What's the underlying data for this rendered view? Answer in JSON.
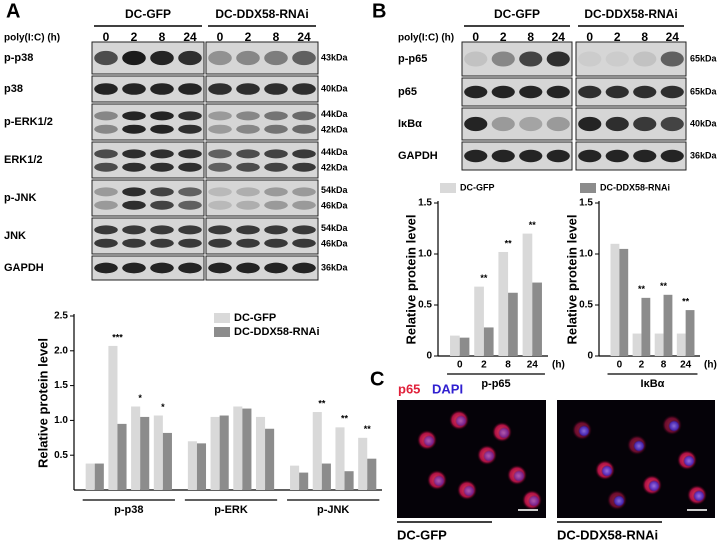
{
  "panel_labels": [
    "A",
    "B",
    "C"
  ],
  "blot_a": {
    "treatment_label": "poly(I:C) (h)",
    "groups": [
      "DC-GFP",
      "DC-DDX58-RNAi"
    ],
    "timepoints": [
      "0",
      "2",
      "8",
      "24"
    ],
    "rows": [
      {
        "name": "p-p38",
        "sizes": [
          "43kDa"
        ]
      },
      {
        "name": "p38",
        "sizes": [
          "40kDa"
        ]
      },
      {
        "name": "p-ERK1/2",
        "sizes": [
          "44kDa",
          "42kDa"
        ]
      },
      {
        "name": "ERK1/2",
        "sizes": [
          "44kDa",
          "42kDa"
        ]
      },
      {
        "name": "p-JNK",
        "sizes": [
          "54kDa",
          "46kDa"
        ]
      },
      {
        "name": "JNK",
        "sizes": [
          "54kDa",
          "46kDa"
        ]
      },
      {
        "name": "GAPDH",
        "sizes": [
          "36kDa"
        ]
      }
    ]
  },
  "blot_b": {
    "treatment_label": "poly(I:C) (h)",
    "groups": [
      "DC-GFP",
      "DC-DDX58-RNAi"
    ],
    "timepoints": [
      "0",
      "2",
      "8",
      "24"
    ],
    "rows": [
      {
        "name": "p-p65",
        "sizes": [
          "65kDa"
        ]
      },
      {
        "name": "p65",
        "sizes": [
          "65kDa"
        ]
      },
      {
        "name": "IκBα",
        "sizes": [
          "40kDa"
        ]
      },
      {
        "name": "GAPDH",
        "sizes": [
          "36kDa"
        ]
      }
    ]
  },
  "panel_c": {
    "stains": [
      "p65",
      "DAPI"
    ],
    "images": [
      "DC-GFP",
      "DC-DDX58-RNAi"
    ]
  },
  "chart_data": [
    {
      "type": "bar",
      "ylabel": "Relative protein level",
      "categories": [
        null,
        null,
        null,
        null,
        null,
        null,
        null,
        null,
        null,
        null,
        null,
        null
      ],
      "group_labels": [
        "p-p38",
        "p-ERK",
        "p-JNK"
      ],
      "series": [
        {
          "name": "DC-GFP",
          "color": "#d9d9d9",
          "values": [
            0.38,
            2.07,
            1.2,
            1.07,
            0.7,
            1.05,
            1.2,
            1.05,
            0.35,
            1.12,
            0.9,
            0.75
          ]
        },
        {
          "name": "DC-DDX58-RNAi",
          "color": "#8c8c8c",
          "values": [
            0.38,
            0.95,
            1.05,
            0.82,
            0.67,
            1.07,
            1.17,
            0.88,
            0.25,
            0.38,
            0.27,
            0.45
          ]
        }
      ],
      "significance": [
        null,
        "***",
        "*",
        "*",
        null,
        null,
        null,
        null,
        null,
        "**",
        "**",
        "**"
      ],
      "ylim": [
        0,
        2.5
      ],
      "yticks": [
        0.5,
        {
          "value": 1,
          "label": "1.0"
        },
        1.5,
        {
          "value": 2,
          "label": "2.0"
        },
        2.5
      ],
      "legend": "top-right"
    },
    {
      "type": "bar",
      "ylabel": "Relative protein level",
      "categories": [
        "0",
        "2",
        "8",
        "24"
      ],
      "x_unit": "(h)",
      "group_labels": [
        "p-p65"
      ],
      "series": [
        {
          "name": "DC-GFP",
          "color": "#d9d9d9",
          "values": [
            0.2,
            0.68,
            1.02,
            1.2
          ]
        },
        {
          "name": "DC-DDX58-RNAi",
          "color": "#8c8c8c",
          "values": [
            0.18,
            0.28,
            0.62,
            0.72
          ]
        }
      ],
      "significance": [
        null,
        "**",
        "**",
        "**"
      ],
      "ylim": [
        0,
        1.5
      ],
      "yticks": [
        0,
        0.5,
        {
          "value": 1,
          "label": "1.0"
        },
        1.5
      ],
      "legend": "top"
    },
    {
      "type": "bar",
      "ylabel": "Relative protein level",
      "categories": [
        "0",
        "2",
        "8",
        "24"
      ],
      "x_unit": "(h)",
      "group_labels": [
        "IκBα"
      ],
      "series": [
        {
          "name": "DC-GFP",
          "color": "#d9d9d9",
          "values": [
            1.1,
            0.22,
            0.22,
            0.22
          ]
        },
        {
          "name": "DC-DDX58-RNAi",
          "color": "#8c8c8c",
          "values": [
            1.05,
            0.57,
            0.6,
            0.45
          ]
        }
      ],
      "significance": [
        null,
        "**",
        "**",
        "**"
      ],
      "ylim": [
        0,
        1.5
      ],
      "yticks": [
        0,
        0.5,
        {
          "value": 1,
          "label": "1.0"
        },
        1.5
      ],
      "legend": "none"
    }
  ]
}
